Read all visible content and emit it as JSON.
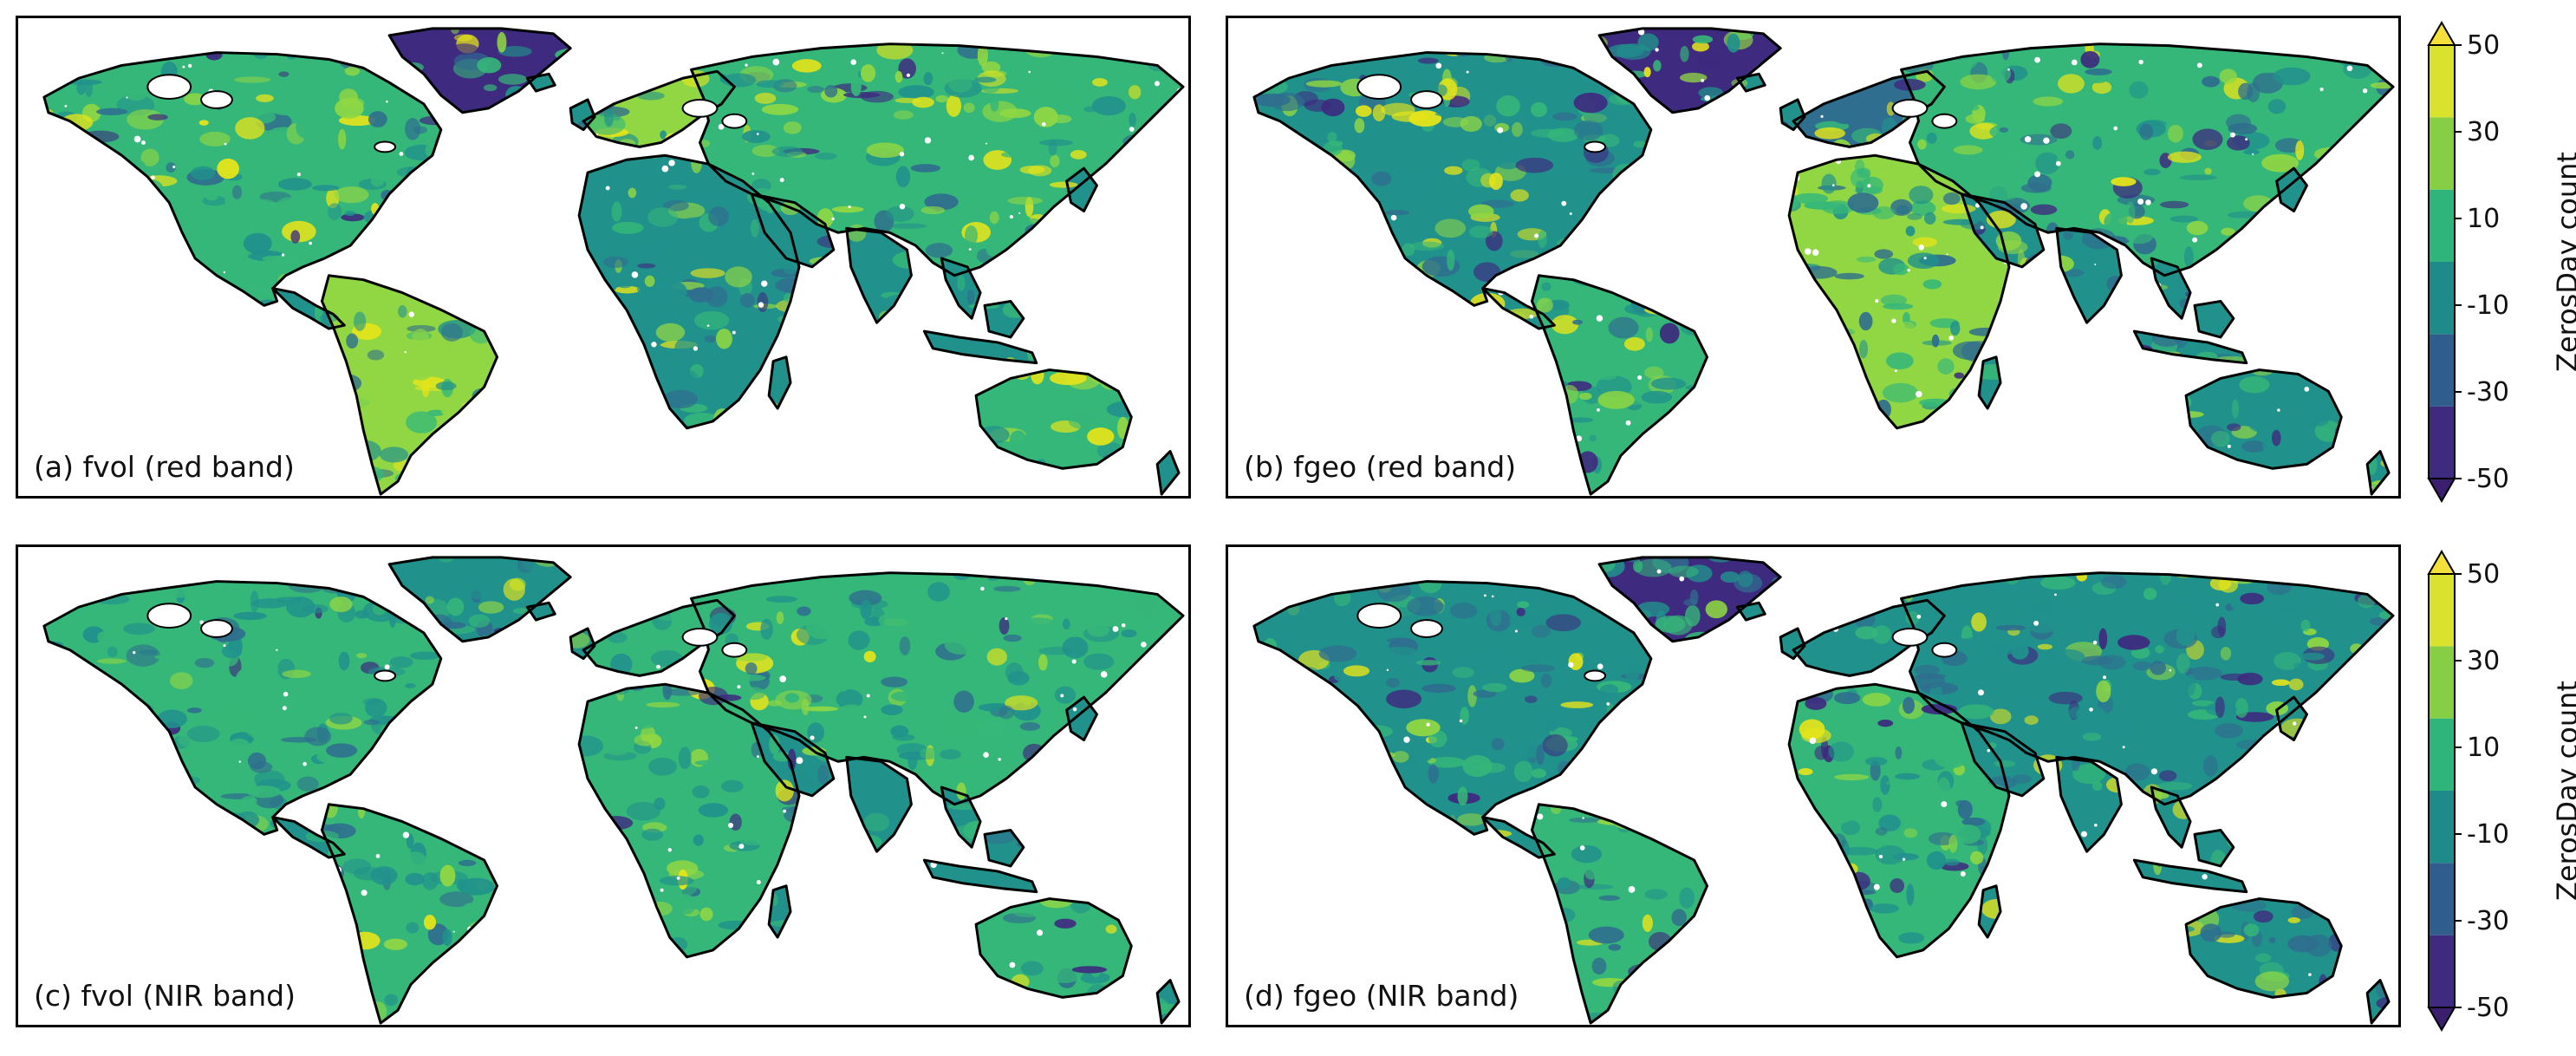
{
  "panels": [
    {
      "label": "(a) fvol (red band)"
    },
    {
      "label": "(b) fgeo (red band)"
    },
    {
      "label": "(c) fvol (NIR band)"
    },
    {
      "label": "(d) fgeo (NIR band)"
    }
  ],
  "colorbar": {
    "title": "ZerosDay count",
    "ticks": [
      "50",
      "30",
      "10",
      "-10",
      "-30",
      "-50"
    ],
    "colors": [
      "#3e2a7f",
      "#2f5e8c",
      "#1f8a8a",
      "#2fb47c",
      "#86cf45",
      "#d9e22d"
    ],
    "extend": "both"
  },
  "map_palette": {
    "ocean": "#ffffff",
    "coast": "#000000",
    "low": "#3e2a7f",
    "mid_low": "#2f6e8e",
    "mid": "#21918c",
    "mid_high": "#35b779",
    "high": "#90d743",
    "very_high": "#e6e419"
  }
}
